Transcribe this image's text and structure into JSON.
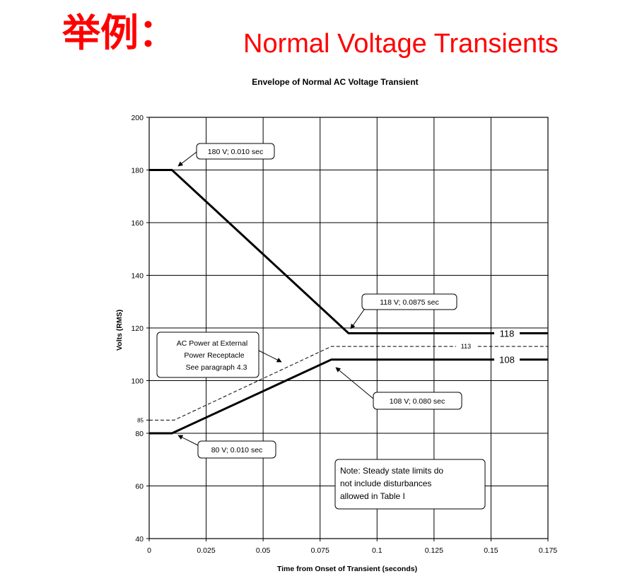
{
  "slide": {
    "title_cn": "举例：",
    "title_en": "Normal Voltage Transients"
  },
  "chart_data": {
    "type": "line",
    "title": "Envelope of Normal AC Voltage Transient",
    "xlabel": "Time from Onset of Transient (seconds)",
    "ylabel": "Volts (RMS)",
    "xlim": [
      0,
      0.175
    ],
    "ylim": [
      40,
      200
    ],
    "x_ticks": [
      0,
      0.025,
      0.05,
      0.075,
      0.1,
      0.125,
      0.15,
      0.175
    ],
    "x_tick_labels": [
      "0",
      "0.025",
      "0.05",
      "0.075",
      "0.1",
      "0.125",
      "0.15",
      "0.175"
    ],
    "y_ticks": [
      40,
      60,
      80,
      100,
      120,
      140,
      160,
      180,
      200
    ],
    "y_tick_labels": [
      "40",
      "60",
      "80",
      "100",
      "120",
      "140",
      "160",
      "180",
      "200"
    ],
    "extra_y_tick": {
      "value": 85,
      "label": "85"
    },
    "grid": true,
    "series": [
      {
        "style": "thick-solid",
        "x": [
          0,
          0.01,
          0.0875,
          0.175
        ],
        "y": [
          180,
          180,
          118,
          118
        ]
      },
      {
        "style": "thick-solid",
        "x": [
          0,
          0.01,
          0.08,
          0.175
        ],
        "y": [
          80,
          80,
          108,
          108
        ]
      },
      {
        "style": "dashed",
        "x": [
          0,
          0.011,
          0.08,
          0.175
        ],
        "y": [
          85,
          85,
          113,
          113
        ]
      }
    ],
    "line_labels": [
      {
        "text": "118",
        "x": 0.157,
        "y": 118
      },
      {
        "text": "113",
        "x": 0.139,
        "y": 113
      },
      {
        "text": "108",
        "x": 0.157,
        "y": 108
      }
    ],
    "annotations": [
      {
        "text": "180 V; 0.010 sec"
      },
      {
        "text": "118 V; 0.0875 sec"
      },
      {
        "text": "108 V; 0.080 sec"
      },
      {
        "text": "80 V; 0.010 sec"
      },
      {
        "lines": [
          "AC Power at External",
          "Power Receptacle",
          "See paragraph 4.3"
        ]
      },
      {
        "lines": [
          "Note: Steady state limits do",
          "not include disturbances",
          "allowed in Table I"
        ]
      }
    ]
  }
}
